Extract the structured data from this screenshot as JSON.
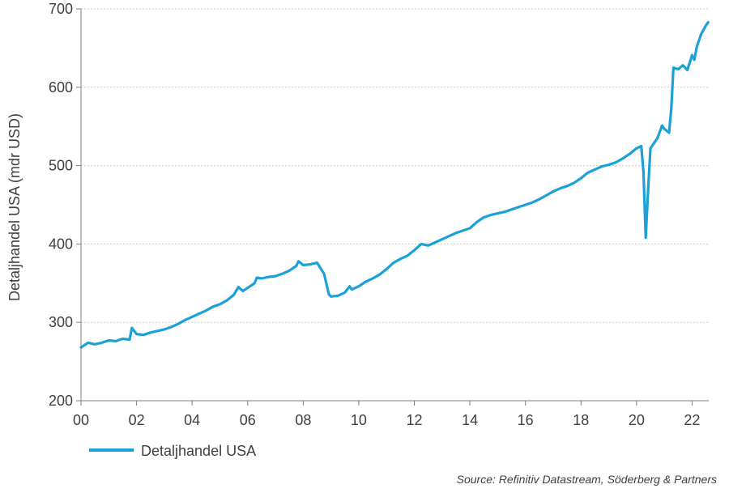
{
  "chart_data": {
    "type": "line",
    "title": "",
    "xlabel": "",
    "ylabel": "Detaljhandel USA (mdr USD)",
    "ylim": [
      200,
      700
    ],
    "xlim": [
      2000.0,
      2022.6
    ],
    "y_ticks": [
      200,
      300,
      400,
      500,
      600,
      700
    ],
    "x_ticks": [
      {
        "value": 2000,
        "label": "00"
      },
      {
        "value": 2002,
        "label": "02"
      },
      {
        "value": 2004,
        "label": "04"
      },
      {
        "value": 2006,
        "label": "06"
      },
      {
        "value": 2008,
        "label": "08"
      },
      {
        "value": 2010,
        "label": "10"
      },
      {
        "value": 2012,
        "label": "12"
      },
      {
        "value": 2014,
        "label": "14"
      },
      {
        "value": 2016,
        "label": "16"
      },
      {
        "value": 2018,
        "label": "18"
      },
      {
        "value": 2020,
        "label": "20"
      },
      {
        "value": 2022,
        "label": "22"
      }
    ],
    "grid": "horizontal dotted",
    "legend_position": "bottom-left",
    "series": [
      {
        "name": "Detaljhandel USA",
        "color": "#1BA1D8",
        "points": [
          [
            2000.0,
            268
          ],
          [
            2000.25,
            274
          ],
          [
            2000.5,
            272
          ],
          [
            2000.75,
            274
          ],
          [
            2001.0,
            277
          ],
          [
            2001.25,
            276
          ],
          [
            2001.5,
            279
          ],
          [
            2001.75,
            278
          ],
          [
            2001.83,
            293
          ],
          [
            2002.0,
            285
          ],
          [
            2002.25,
            284
          ],
          [
            2002.5,
            287
          ],
          [
            2002.75,
            289
          ],
          [
            2003.0,
            291
          ],
          [
            2003.25,
            294
          ],
          [
            2003.5,
            298
          ],
          [
            2003.75,
            303
          ],
          [
            2004.0,
            307
          ],
          [
            2004.25,
            311
          ],
          [
            2004.5,
            315
          ],
          [
            2004.75,
            320
          ],
          [
            2005.0,
            323
          ],
          [
            2005.25,
            328
          ],
          [
            2005.5,
            335
          ],
          [
            2005.67,
            345
          ],
          [
            2005.83,
            340
          ],
          [
            2006.0,
            344
          ],
          [
            2006.25,
            350
          ],
          [
            2006.33,
            357
          ],
          [
            2006.5,
            356
          ],
          [
            2006.75,
            358
          ],
          [
            2007.0,
            359
          ],
          [
            2007.25,
            362
          ],
          [
            2007.5,
            366
          ],
          [
            2007.75,
            372
          ],
          [
            2007.83,
            378
          ],
          [
            2008.0,
            373
          ],
          [
            2008.25,
            374
          ],
          [
            2008.5,
            376
          ],
          [
            2008.75,
            362
          ],
          [
            2008.92,
            336
          ],
          [
            2009.0,
            333
          ],
          [
            2009.25,
            334
          ],
          [
            2009.5,
            338
          ],
          [
            2009.67,
            346
          ],
          [
            2009.75,
            342
          ],
          [
            2010.0,
            346
          ],
          [
            2010.25,
            352
          ],
          [
            2010.5,
            356
          ],
          [
            2010.75,
            361
          ],
          [
            2011.0,
            368
          ],
          [
            2011.25,
            376
          ],
          [
            2011.5,
            381
          ],
          [
            2011.75,
            385
          ],
          [
            2012.0,
            392
          ],
          [
            2012.25,
            400
          ],
          [
            2012.5,
            398
          ],
          [
            2012.75,
            402
          ],
          [
            2013.0,
            406
          ],
          [
            2013.25,
            410
          ],
          [
            2013.5,
            414
          ],
          [
            2013.75,
            417
          ],
          [
            2014.0,
            420
          ],
          [
            2014.25,
            428
          ],
          [
            2014.5,
            434
          ],
          [
            2014.75,
            437
          ],
          [
            2015.0,
            439
          ],
          [
            2015.25,
            441
          ],
          [
            2015.5,
            444
          ],
          [
            2015.75,
            447
          ],
          [
            2016.0,
            450
          ],
          [
            2016.25,
            453
          ],
          [
            2016.5,
            457
          ],
          [
            2016.75,
            462
          ],
          [
            2017.0,
            467
          ],
          [
            2017.25,
            471
          ],
          [
            2017.5,
            474
          ],
          [
            2017.75,
            478
          ],
          [
            2018.0,
            484
          ],
          [
            2018.25,
            491
          ],
          [
            2018.5,
            495
          ],
          [
            2018.75,
            499
          ],
          [
            2019.0,
            501
          ],
          [
            2019.25,
            504
          ],
          [
            2019.5,
            509
          ],
          [
            2019.75,
            515
          ],
          [
            2020.0,
            522
          ],
          [
            2020.17,
            525
          ],
          [
            2020.25,
            492
          ],
          [
            2020.33,
            408
          ],
          [
            2020.42,
            470
          ],
          [
            2020.5,
            522
          ],
          [
            2020.75,
            535
          ],
          [
            2020.92,
            551
          ],
          [
            2021.0,
            547
          ],
          [
            2021.17,
            542
          ],
          [
            2021.25,
            572
          ],
          [
            2021.33,
            625
          ],
          [
            2021.5,
            623
          ],
          [
            2021.67,
            628
          ],
          [
            2021.83,
            622
          ],
          [
            2022.0,
            641
          ],
          [
            2022.08,
            635
          ],
          [
            2022.17,
            652
          ],
          [
            2022.33,
            668
          ],
          [
            2022.5,
            679
          ],
          [
            2022.58,
            683
          ]
        ]
      }
    ],
    "source": "Source: Refinitiv Datastream, Söderberg & Partners"
  }
}
